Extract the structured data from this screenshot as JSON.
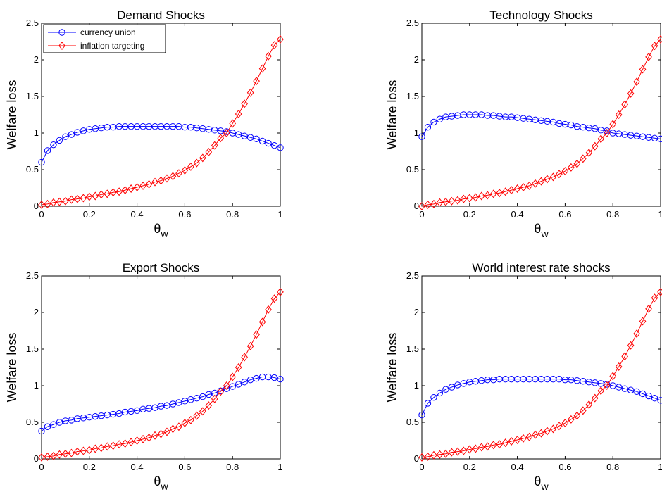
{
  "chart_data": [
    {
      "type": "line",
      "title": "Demand Shocks",
      "xlabel": "θ",
      "xlabel_sub": "w",
      "ylabel": "Welfare loss",
      "xlim": [
        0,
        1
      ],
      "ylim": [
        0,
        2.5
      ],
      "xticks": [
        "0",
        "0.2",
        "0.4",
        "0.6",
        "0.8",
        "1"
      ],
      "yticks": [
        "0",
        "0.5",
        "1",
        "1.5",
        "2",
        "2.5"
      ],
      "legend_position": "top-left",
      "x": [
        0,
        0.025,
        0.05,
        0.075,
        0.1,
        0.125,
        0.15,
        0.175,
        0.2,
        0.225,
        0.25,
        0.275,
        0.3,
        0.325,
        0.35,
        0.375,
        0.4,
        0.425,
        0.45,
        0.475,
        0.5,
        0.525,
        0.55,
        0.575,
        0.6,
        0.625,
        0.65,
        0.675,
        0.7,
        0.725,
        0.75,
        0.775,
        0.8,
        0.825,
        0.85,
        0.875,
        0.9,
        0.925,
        0.95,
        0.975,
        1.0
      ],
      "series": [
        {
          "name": "currency union",
          "color": "#0000ff",
          "marker": "circle",
          "values": [
            0.6,
            0.76,
            0.84,
            0.9,
            0.95,
            0.98,
            1.01,
            1.03,
            1.05,
            1.06,
            1.07,
            1.08,
            1.08,
            1.09,
            1.09,
            1.09,
            1.09,
            1.09,
            1.09,
            1.09,
            1.09,
            1.09,
            1.09,
            1.09,
            1.08,
            1.08,
            1.07,
            1.06,
            1.05,
            1.04,
            1.03,
            1.02,
            1.0,
            0.98,
            0.96,
            0.94,
            0.92,
            0.89,
            0.86,
            0.83,
            0.8
          ]
        },
        {
          "name": "inflation targeting",
          "color": "#ff0000",
          "marker": "diamond",
          "values": [
            0.02,
            0.03,
            0.05,
            0.06,
            0.07,
            0.09,
            0.1,
            0.11,
            0.13,
            0.14,
            0.16,
            0.17,
            0.19,
            0.2,
            0.22,
            0.24,
            0.26,
            0.28,
            0.3,
            0.33,
            0.35,
            0.38,
            0.41,
            0.45,
            0.49,
            0.54,
            0.59,
            0.66,
            0.74,
            0.83,
            0.93,
            1.0,
            1.13,
            1.26,
            1.4,
            1.55,
            1.71,
            1.88,
            2.05,
            2.2,
            2.28
          ]
        }
      ]
    },
    {
      "type": "line",
      "title": "Technology Shocks",
      "xlabel": "θ",
      "xlabel_sub": "w",
      "ylabel": "Welfare loss",
      "xlim": [
        0,
        1
      ],
      "ylim": [
        0,
        2.5
      ],
      "xticks": [
        "0",
        "0.2",
        "0.4",
        "0.6",
        "0.8",
        "1"
      ],
      "yticks": [
        "0",
        "0.5",
        "1",
        "1.5",
        "2",
        "2.5"
      ],
      "x": [
        0,
        0.025,
        0.05,
        0.075,
        0.1,
        0.125,
        0.15,
        0.175,
        0.2,
        0.225,
        0.25,
        0.275,
        0.3,
        0.325,
        0.35,
        0.375,
        0.4,
        0.425,
        0.45,
        0.475,
        0.5,
        0.525,
        0.55,
        0.575,
        0.6,
        0.625,
        0.65,
        0.675,
        0.7,
        0.725,
        0.75,
        0.775,
        0.8,
        0.825,
        0.85,
        0.875,
        0.9,
        0.925,
        0.95,
        0.975,
        1.0
      ],
      "series": [
        {
          "name": "currency union",
          "color": "#0000ff",
          "marker": "circle",
          "values": [
            0.95,
            1.08,
            1.15,
            1.19,
            1.22,
            1.23,
            1.24,
            1.25,
            1.25,
            1.25,
            1.25,
            1.24,
            1.24,
            1.23,
            1.22,
            1.22,
            1.21,
            1.2,
            1.19,
            1.18,
            1.17,
            1.16,
            1.15,
            1.13,
            1.12,
            1.11,
            1.09,
            1.08,
            1.07,
            1.06,
            1.04,
            1.03,
            1.0,
            0.99,
            0.98,
            0.97,
            0.96,
            0.95,
            0.94,
            0.93,
            0.92
          ]
        },
        {
          "name": "inflation targeting",
          "color": "#ff0000",
          "marker": "diamond",
          "values": [
            0.0,
            0.02,
            0.03,
            0.05,
            0.06,
            0.07,
            0.08,
            0.1,
            0.11,
            0.12,
            0.14,
            0.15,
            0.17,
            0.18,
            0.2,
            0.22,
            0.24,
            0.26,
            0.28,
            0.31,
            0.34,
            0.37,
            0.4,
            0.44,
            0.48,
            0.53,
            0.58,
            0.65,
            0.73,
            0.82,
            0.92,
            1.0,
            1.12,
            1.25,
            1.39,
            1.54,
            1.7,
            1.87,
            2.04,
            2.19,
            2.28
          ]
        }
      ]
    },
    {
      "type": "line",
      "title": "Export Shocks",
      "xlabel": "θ",
      "xlabel_sub": "w",
      "ylabel": "Welfare loss",
      "xlim": [
        0,
        1
      ],
      "ylim": [
        0,
        2.5
      ],
      "xticks": [
        "0",
        "0.2",
        "0.4",
        "0.6",
        "0.8",
        "1"
      ],
      "yticks": [
        "0",
        "0.5",
        "1",
        "1.5",
        "2",
        "2.5"
      ],
      "x": [
        0,
        0.025,
        0.05,
        0.075,
        0.1,
        0.125,
        0.15,
        0.175,
        0.2,
        0.225,
        0.25,
        0.275,
        0.3,
        0.325,
        0.35,
        0.375,
        0.4,
        0.425,
        0.45,
        0.475,
        0.5,
        0.525,
        0.55,
        0.575,
        0.6,
        0.625,
        0.65,
        0.675,
        0.7,
        0.725,
        0.75,
        0.775,
        0.8,
        0.825,
        0.85,
        0.875,
        0.9,
        0.925,
        0.95,
        0.975,
        1.0
      ],
      "series": [
        {
          "name": "currency union",
          "color": "#0000ff",
          "marker": "circle",
          "values": [
            0.38,
            0.44,
            0.47,
            0.5,
            0.52,
            0.53,
            0.55,
            0.56,
            0.57,
            0.58,
            0.59,
            0.6,
            0.61,
            0.62,
            0.64,
            0.65,
            0.66,
            0.68,
            0.69,
            0.7,
            0.72,
            0.73,
            0.75,
            0.77,
            0.79,
            0.81,
            0.83,
            0.85,
            0.88,
            0.9,
            0.93,
            0.96,
            0.99,
            1.02,
            1.05,
            1.08,
            1.1,
            1.12,
            1.12,
            1.11,
            1.09
          ]
        },
        {
          "name": "inflation targeting",
          "color": "#ff0000",
          "marker": "diamond",
          "values": [
            0.02,
            0.03,
            0.04,
            0.06,
            0.07,
            0.08,
            0.1,
            0.11,
            0.12,
            0.14,
            0.15,
            0.17,
            0.18,
            0.2,
            0.21,
            0.23,
            0.25,
            0.27,
            0.29,
            0.32,
            0.34,
            0.37,
            0.41,
            0.44,
            0.49,
            0.53,
            0.59,
            0.65,
            0.73,
            0.82,
            0.92,
            1.0,
            1.12,
            1.25,
            1.39,
            1.54,
            1.7,
            1.87,
            2.04,
            2.19,
            2.28
          ]
        }
      ]
    },
    {
      "type": "line",
      "title": "World interest rate shocks",
      "xlabel": "θ",
      "xlabel_sub": "w",
      "ylabel": "Welfare loss",
      "xlim": [
        0,
        1
      ],
      "ylim": [
        0,
        2.5
      ],
      "xticks": [
        "0",
        "0.2",
        "0.4",
        "0.6",
        "0.8",
        "1"
      ],
      "yticks": [
        "0",
        "0.5",
        "1",
        "1.5",
        "2",
        "2.5"
      ],
      "x": [
        0,
        0.025,
        0.05,
        0.075,
        0.1,
        0.125,
        0.15,
        0.175,
        0.2,
        0.225,
        0.25,
        0.275,
        0.3,
        0.325,
        0.35,
        0.375,
        0.4,
        0.425,
        0.45,
        0.475,
        0.5,
        0.525,
        0.55,
        0.575,
        0.6,
        0.625,
        0.65,
        0.675,
        0.7,
        0.725,
        0.75,
        0.775,
        0.8,
        0.825,
        0.85,
        0.875,
        0.9,
        0.925,
        0.95,
        0.975,
        1.0
      ],
      "series": [
        {
          "name": "currency union",
          "color": "#0000ff",
          "marker": "circle",
          "values": [
            0.6,
            0.76,
            0.84,
            0.9,
            0.95,
            0.98,
            1.01,
            1.03,
            1.05,
            1.06,
            1.07,
            1.08,
            1.08,
            1.09,
            1.09,
            1.09,
            1.09,
            1.09,
            1.09,
            1.09,
            1.09,
            1.09,
            1.09,
            1.09,
            1.08,
            1.08,
            1.07,
            1.06,
            1.05,
            1.04,
            1.03,
            1.02,
            1.0,
            0.98,
            0.96,
            0.94,
            0.92,
            0.89,
            0.86,
            0.83,
            0.8
          ]
        },
        {
          "name": "inflation targeting",
          "color": "#ff0000",
          "marker": "diamond",
          "values": [
            0.02,
            0.03,
            0.05,
            0.06,
            0.07,
            0.09,
            0.1,
            0.11,
            0.13,
            0.14,
            0.16,
            0.17,
            0.19,
            0.2,
            0.22,
            0.24,
            0.26,
            0.28,
            0.3,
            0.33,
            0.35,
            0.38,
            0.41,
            0.45,
            0.49,
            0.54,
            0.59,
            0.66,
            0.74,
            0.83,
            0.93,
            1.0,
            1.13,
            1.26,
            1.4,
            1.55,
            1.71,
            1.88,
            2.05,
            2.2,
            2.28
          ]
        }
      ]
    }
  ]
}
